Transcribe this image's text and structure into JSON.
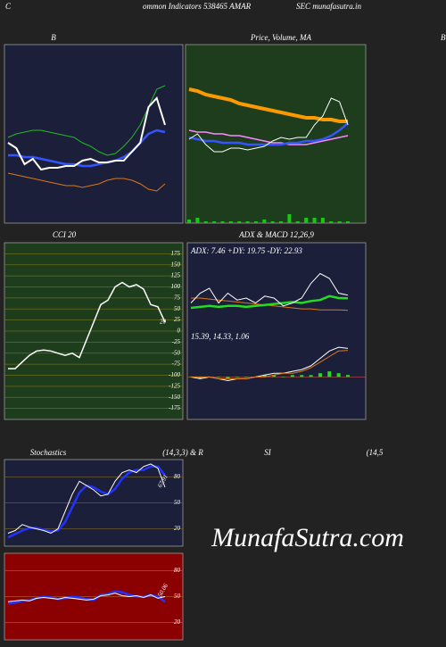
{
  "header": [
    "C",
    "ommon  Indicators 538465 AMAR",
    "SEC munafasutra.in",
    "B"
  ],
  "watermark": "MunafaSutra.com",
  "chart_data": [
    {
      "type": "line",
      "title": "B",
      "background": "#1c1f3a",
      "ylim": [
        0,
        100
      ],
      "series": [
        {
          "color": "#22bb22",
          "width": 1,
          "values": [
            48,
            50,
            51,
            52,
            52,
            51,
            50,
            49,
            48,
            45,
            43,
            40,
            38,
            39,
            43,
            48,
            55,
            65,
            75,
            77
          ]
        },
        {
          "color": "#3355ff",
          "width": 2.5,
          "values": [
            38,
            38,
            37,
            37,
            36,
            35,
            34,
            33,
            33,
            32,
            32,
            33,
            34,
            35,
            37,
            40,
            45,
            50,
            52,
            51
          ]
        },
        {
          "color": "#dd7711",
          "width": 1,
          "values": [
            28,
            27,
            26,
            25,
            24,
            23,
            22,
            21,
            21,
            20,
            21,
            22,
            24,
            25,
            25,
            24,
            22,
            19,
            18,
            22
          ]
        },
        {
          "color": "#ffffff",
          "width": 2,
          "values": [
            45,
            42,
            33,
            36,
            30,
            31,
            31,
            32,
            32,
            35,
            36,
            34,
            34,
            35,
            35,
            40,
            45,
            65,
            70,
            55
          ]
        }
      ]
    },
    {
      "type": "line",
      "title": "Price, Volume, MA",
      "background": "#1d3d1d",
      "ylim": [
        0,
        100
      ],
      "series": [
        {
          "color": "#11cc11",
          "width": 1,
          "style": "bar",
          "values": [
            2,
            3,
            1,
            1,
            1,
            1,
            1,
            1,
            1,
            2,
            1,
            1,
            5,
            1,
            3,
            3,
            3,
            1,
            1,
            1
          ]
        },
        {
          "color": "#ff9900",
          "width": 4,
          "values": [
            75,
            74,
            72,
            71,
            70,
            69,
            67,
            66,
            65,
            64,
            63,
            62,
            61,
            60,
            59,
            59,
            58,
            58,
            57,
            57
          ]
        },
        {
          "color": "#ff88ff",
          "width": 1.5,
          "values": [
            52,
            51,
            51,
            50,
            50,
            49,
            49,
            48,
            47,
            46,
            45,
            45,
            44,
            44,
            44,
            45,
            46,
            47,
            48,
            49
          ]
        },
        {
          "color": "#3355ff",
          "width": 2.5,
          "values": [
            48,
            47,
            46,
            46,
            45,
            45,
            45,
            44,
            44,
            44,
            44,
            44,
            45,
            45,
            46,
            46,
            47,
            49,
            52,
            56
          ]
        },
        {
          "color": "#ffffff",
          "width": 1,
          "values": [
            47,
            50,
            44,
            40,
            40,
            42,
            42,
            41,
            42,
            43,
            46,
            48,
            47,
            48,
            48,
            55,
            60,
            70,
            68,
            55
          ]
        }
      ]
    },
    {
      "type": "line",
      "title": "CCI 20",
      "background": "#1d3d1d",
      "grid_color": "#6b6b1e",
      "ylim": [
        -200,
        200
      ],
      "yticks": [
        175,
        150,
        125,
        100,
        75,
        50,
        25,
        0,
        -25,
        -50,
        -75,
        -100,
        -125,
        -150,
        -175
      ],
      "last_value": 20,
      "series": [
        {
          "color": "#ffffff",
          "width": 1.5,
          "values": [
            -85,
            -85,
            -70,
            -55,
            -45,
            -43,
            -45,
            -50,
            -55,
            -50,
            -60,
            -20,
            20,
            60,
            70,
            100,
            110,
            100,
            105,
            95,
            60,
            55,
            20
          ]
        }
      ]
    },
    {
      "type": "line",
      "title": "ADX  & MACD 12,26,9",
      "subtitle": "ADX: 7.46  +DY: 19.75 -DY: 22.93",
      "background": "#1c1f3a",
      "ylim": [
        -20,
        60
      ],
      "series": [
        {
          "color": "#dd7711",
          "width": 1,
          "values": [
            20,
            20,
            19,
            18,
            17,
            16,
            15,
            14,
            13,
            12,
            11,
            10,
            9,
            9,
            8,
            8,
            8,
            7.46
          ]
        },
        {
          "color": "#22dd22",
          "width": 2.5,
          "values": [
            10,
            11,
            12,
            11,
            12,
            12,
            11,
            12,
            13,
            14,
            15,
            16,
            15,
            17,
            18,
            22,
            20,
            19.75
          ]
        },
        {
          "color": "#ffffff",
          "width": 1,
          "values": [
            15,
            25,
            30,
            15,
            25,
            18,
            20,
            15,
            22,
            20,
            12,
            15,
            20,
            35,
            45,
            40,
            25,
            22.93
          ]
        }
      ]
    },
    {
      "type": "line",
      "subtitle": "15.39, 14.33, 1.06",
      "background": "#1c1f3a",
      "ylim": [
        -22,
        18
      ],
      "series": [
        {
          "color": "#22dd22",
          "width": 1,
          "style": "bar",
          "values": [
            0,
            -1,
            0,
            0,
            -1,
            0,
            0,
            0,
            1,
            1,
            0,
            1,
            1,
            1,
            2,
            3,
            2,
            1.06
          ]
        },
        {
          "color": "#ffffff",
          "width": 1,
          "values": [
            0,
            -1,
            0,
            -1,
            -2,
            -1,
            -1,
            0,
            1,
            2,
            2,
            3,
            4,
            6,
            10,
            14,
            16,
            15.39
          ]
        },
        {
          "color": "#dd7711",
          "width": 1,
          "values": [
            0,
            0,
            0,
            -1,
            -1,
            -1,
            -1,
            0,
            0,
            1,
            2,
            2,
            3,
            5,
            8,
            11,
            14,
            14.33
          ]
        }
      ]
    },
    {
      "type": "line",
      "title": "Stochastics",
      "subtitle": "(14,3,3) & R",
      "background": "#1c1f3a",
      "grid_color": "#6b5b2a",
      "ylim": [
        0,
        100
      ],
      "yticks": [
        80,
        50,
        20
      ],
      "last_value": 67.91,
      "series": [
        {
          "color": "#2233ff",
          "width": 2.5,
          "values": [
            10,
            14,
            18,
            21,
            21,
            19,
            17,
            18,
            28,
            45,
            62,
            70,
            68,
            63,
            60,
            66,
            78,
            85,
            88,
            88,
            92,
            92,
            82
          ]
        },
        {
          "color": "#ffffff",
          "width": 1,
          "values": [
            15,
            18,
            25,
            22,
            20,
            18,
            15,
            20,
            40,
            60,
            75,
            70,
            65,
            58,
            60,
            75,
            85,
            88,
            85,
            92,
            95,
            90,
            68
          ]
        }
      ]
    },
    {
      "type": "line",
      "title": "SI",
      "subtitle": "(14,5",
      "background": "#8b0000",
      "grid_color": "#aa5522",
      "ylim": [
        0,
        100
      ],
      "yticks": [
        80,
        50,
        20
      ],
      "last_value": 50.06,
      "series": [
        {
          "color": "#2233ff",
          "width": 2.5,
          "values": [
            42,
            43,
            45,
            46,
            48,
            50,
            49,
            47,
            48,
            50,
            49,
            47,
            46,
            52,
            53,
            56,
            55,
            52,
            50,
            50,
            52,
            50,
            44
          ]
        },
        {
          "color": "#ffffff",
          "width": 1,
          "values": [
            44,
            45,
            46,
            45,
            48,
            49,
            48,
            47,
            49,
            48,
            47,
            46,
            47,
            51,
            52,
            54,
            51,
            50,
            51,
            49,
            52,
            48,
            50
          ]
        }
      ]
    }
  ]
}
